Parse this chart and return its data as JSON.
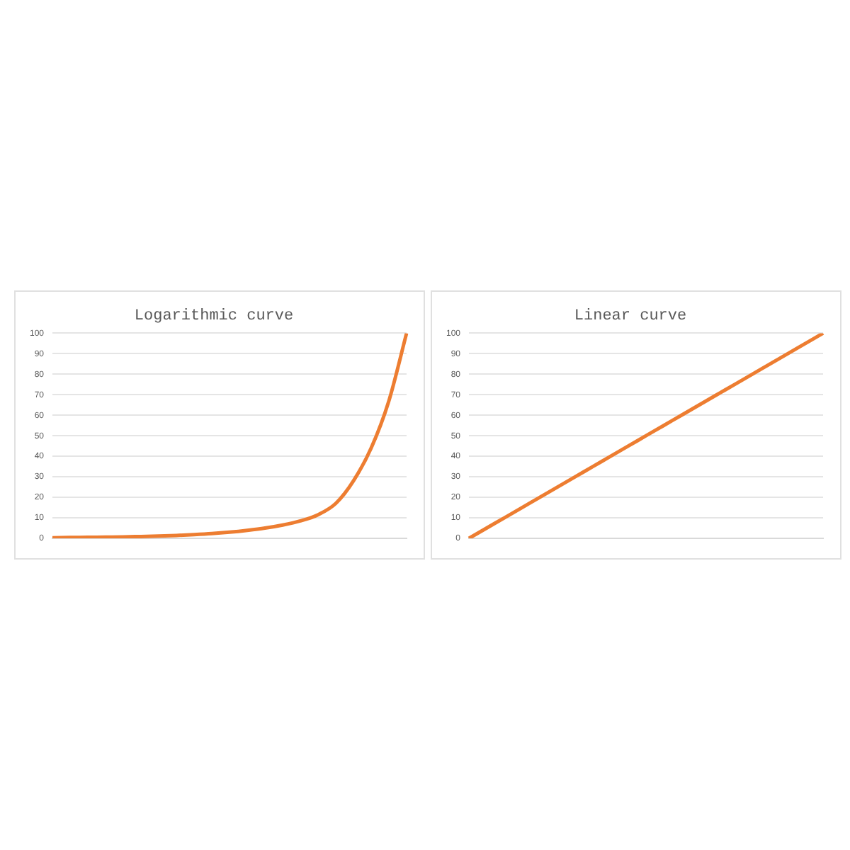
{
  "chart_data": [
    {
      "type": "line",
      "title": "Logarithmic curve",
      "categories": [
        null,
        null,
        null,
        null,
        null,
        null,
        null,
        null,
        null,
        null,
        null,
        null,
        null,
        null,
        null,
        null,
        null,
        null,
        null,
        null,
        null
      ],
      "series": [
        {
          "color": "#ed7d31",
          "values": [
            0.3,
            0.4,
            0.5,
            0.6,
            0.7,
            0.9,
            1.1,
            1.4,
            1.8,
            2.3,
            3,
            3.9,
            5,
            6.5,
            8.5,
            11.5,
            17,
            28,
            44,
            67,
            100
          ]
        }
      ],
      "ylim": [
        0,
        100
      ],
      "yticks": [
        0,
        10,
        20,
        30,
        40,
        50,
        60,
        70,
        80,
        90,
        100
      ],
      "grid": "y",
      "tick_labels": "y",
      "marker": "none"
    },
    {
      "type": "line",
      "title": "Linear curve",
      "categories": [
        null,
        null,
        null,
        null,
        null,
        null,
        null,
        null,
        null,
        null,
        null,
        null,
        null,
        null,
        null,
        null,
        null,
        null,
        null,
        null,
        null
      ],
      "series": [
        {
          "color": "#ed7d31",
          "values": [
            0,
            5,
            10,
            15,
            20,
            25,
            30,
            35,
            40,
            45,
            50,
            55,
            60,
            65,
            70,
            75,
            80,
            85,
            90,
            95,
            100
          ]
        }
      ],
      "ylim": [
        0,
        100
      ],
      "yticks": [
        0,
        10,
        20,
        30,
        40,
        50,
        60,
        70,
        80,
        90,
        100
      ],
      "grid": "y",
      "tick_labels": "y",
      "marker": "none"
    }
  ]
}
